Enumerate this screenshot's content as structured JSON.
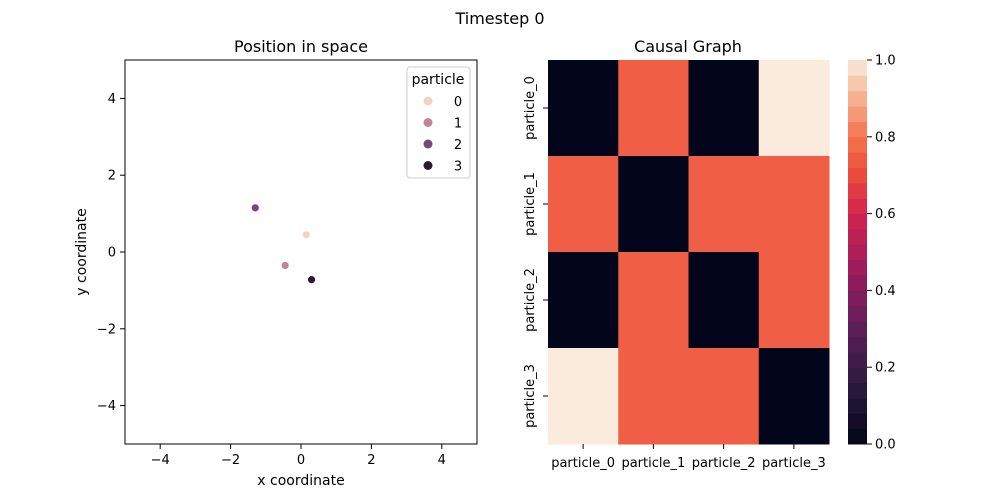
{
  "suptitle": "Timestep 0",
  "chart_data": [
    {
      "type": "scatter",
      "title": "Position in space",
      "xlabel": "x coordinate",
      "ylabel": "y coordinate",
      "xlim": [
        -5,
        5
      ],
      "ylim": [
        -5,
        5
      ],
      "xticks": [
        -4,
        -2,
        0,
        2,
        4
      ],
      "yticks": [
        -4,
        -2,
        0,
        2,
        4
      ],
      "grid": false,
      "legend": {
        "title": "particle",
        "placement": "upper right",
        "entries": [
          "0",
          "1",
          "2",
          "3"
        ]
      },
      "series": [
        {
          "name": "0",
          "color": "#f0d4c4",
          "x": [
            0.15
          ],
          "y": [
            0.45
          ]
        },
        {
          "name": "1",
          "color": "#c28595",
          "x": [
            -0.45
          ],
          "y": [
            -0.35
          ]
        },
        {
          "name": "2",
          "color": "#7a4674",
          "x": [
            -1.3
          ],
          "y": [
            1.15
          ]
        },
        {
          "name": "3",
          "color": "#2d1a32",
          "x": [
            0.3
          ],
          "y": [
            -0.72
          ]
        }
      ]
    },
    {
      "type": "heatmap",
      "title": "Causal Graph",
      "xticklabels": [
        "particle_0",
        "particle_1",
        "particle_2",
        "particle_3"
      ],
      "yticklabels": [
        "particle_0",
        "particle_1",
        "particle_2",
        "particle_3"
      ],
      "values": [
        [
          0.0,
          0.75,
          0.0,
          1.0
        ],
        [
          0.75,
          0.0,
          0.75,
          0.75
        ],
        [
          0.0,
          0.75,
          0.0,
          0.75
        ],
        [
          1.0,
          0.75,
          0.75,
          0.0
        ]
      ],
      "colorbar": {
        "range": [
          0,
          1
        ],
        "ticks": [
          "0.0",
          "0.2",
          "0.4",
          "0.6",
          "0.8",
          "1.0"
        ],
        "colormap": "rocket",
        "bands": 25
      }
    }
  ]
}
